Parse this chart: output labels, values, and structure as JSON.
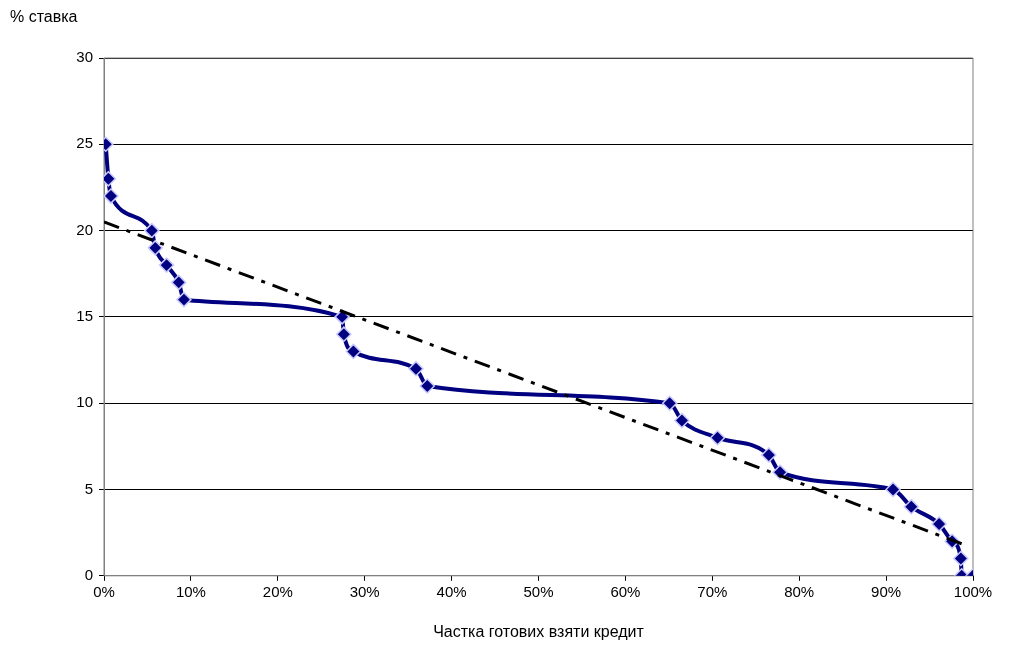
{
  "chart_data": {
    "type": "line",
    "xlabel": "Частка готових взяти кредит",
    "ylabel": "% ставка",
    "xlim": [
      0,
      100
    ],
    "xticks": [
      {
        "value": 0,
        "label": "0%"
      },
      {
        "value": 10,
        "label": "10%"
      },
      {
        "value": 20,
        "label": "20%"
      },
      {
        "value": 30,
        "label": "30%"
      },
      {
        "value": 40,
        "label": "40%"
      },
      {
        "value": 50,
        "label": "50%"
      },
      {
        "value": 60,
        "label": "60%"
      },
      {
        "value": 70,
        "label": "70%"
      },
      {
        "value": 80,
        "label": "80%"
      },
      {
        "value": 90,
        "label": "90%"
      },
      {
        "value": 100,
        "label": "100%"
      }
    ],
    "ylim": [
      0,
      30
    ],
    "yticks": [
      0,
      5,
      10,
      15,
      20,
      25,
      30
    ],
    "grid": "y",
    "legend": false,
    "series": [
      {
        "color": "#000080",
        "marker": "diamond",
        "line_style": "solid",
        "x": [
          0.2,
          0.5,
          0.8,
          5.5,
          5.9,
          7.2,
          8.6,
          9.2,
          27.4,
          27.6,
          28.7,
          35.9,
          37.2,
          65.1,
          66.5,
          70.6,
          76.5,
          77.8,
          90.8,
          92.9,
          96.1,
          97.6,
          98.6,
          98.7,
          100
        ],
        "values": [
          25,
          23,
          22,
          20,
          19,
          18,
          17,
          16,
          15,
          14,
          13,
          12,
          11,
          10,
          9,
          8,
          7,
          6,
          5,
          4,
          3,
          2,
          1,
          0,
          0
        ]
      },
      {
        "color": "#000000",
        "marker": "none",
        "line_style": "dashed",
        "x": [
          0,
          99
        ],
        "values": [
          20.5,
          1.8
        ]
      }
    ]
  }
}
